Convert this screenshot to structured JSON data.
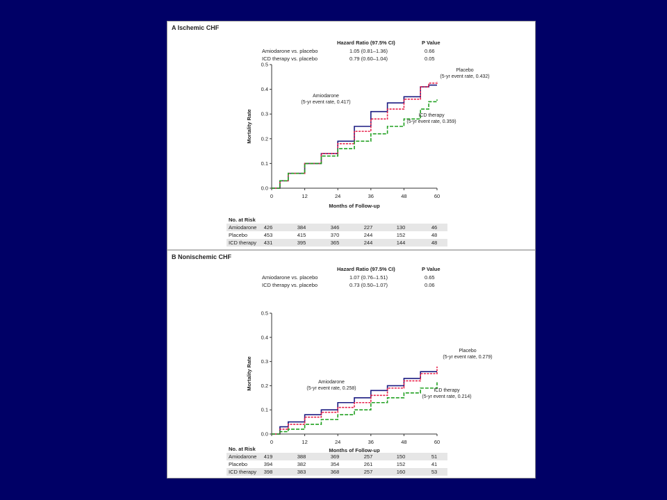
{
  "panels": [
    {
      "id": "a",
      "title": "A  Ischemic CHF",
      "hr_header": {
        "ratio": "Hazard Ratio (97.5% CI)",
        "p": "P Value"
      },
      "hr_rows": [
        {
          "label": "Amiodarone vs. placebo",
          "ratio": "1.05 (0.81–1.36)",
          "p": "0.66"
        },
        {
          "label": "ICD therapy vs. placebo",
          "ratio": "0.79 (0.60–1.04)",
          "p": "0.05"
        }
      ],
      "annotations": {
        "amiodarone": [
          "Amiodarone",
          "(5-yr event rate, 0.417)"
        ],
        "placebo": [
          "Placebo",
          "(5-yr event rate, 0.432)"
        ],
        "icd": [
          "ICD therapy",
          "(5-yr event rate, 0.359)"
        ]
      },
      "at_risk": {
        "title": "No. at Risk",
        "rows": [
          {
            "label": "Amiodarone",
            "values": [
              "426",
              "384",
              "346",
              "227",
              "130",
              "46"
            ]
          },
          {
            "label": "Placebo",
            "values": [
              "453",
              "415",
              "370",
              "244",
              "152",
              "48"
            ]
          },
          {
            "label": "ICD therapy",
            "values": [
              "431",
              "395",
              "365",
              "244",
              "144",
              "48"
            ]
          }
        ]
      }
    },
    {
      "id": "b",
      "title": "B  Nonischemic CHF",
      "hr_header": {
        "ratio": "Hazard Ratio (97.5% CI)",
        "p": "P Value"
      },
      "hr_rows": [
        {
          "label": "Amiodarone vs. placebo",
          "ratio": "1.07 (0.76–1.51)",
          "p": "0.65"
        },
        {
          "label": "ICD therapy vs. placebo",
          "ratio": "0.73 (0.50–1.07)",
          "p": "0.06"
        }
      ],
      "annotations": {
        "amiodarone": [
          "Amiodarone",
          "(5-yr event rate, 0.258)"
        ],
        "placebo": [
          "Placebo",
          "(5-yr event rate, 0.279)"
        ],
        "icd": [
          "ICD therapy",
          "(5-yr event rate, 0.214)"
        ]
      },
      "at_risk": {
        "title": "No. at Risk",
        "rows": [
          {
            "label": "Amiodarone",
            "values": [
              "419",
              "388",
              "369",
              "257",
              "150",
              "51"
            ]
          },
          {
            "label": "Placebo",
            "values": [
              "394",
              "382",
              "354",
              "261",
              "152",
              "41"
            ]
          },
          {
            "label": "ICD therapy",
            "values": [
              "398",
              "383",
              "368",
              "257",
              "160",
              "53"
            ]
          }
        ]
      }
    }
  ],
  "colors": {
    "amiodarone": "#1a1a80",
    "placebo": "#e8204a",
    "icd": "#20a020"
  },
  "chart_data": [
    {
      "type": "line",
      "xlabel": "Months of Follow-up",
      "ylabel": "Mortality Rate",
      "xlim": [
        0,
        60
      ],
      "ylim": [
        0,
        0.5
      ],
      "xticks": [
        0,
        12,
        24,
        36,
        48,
        60
      ],
      "yticks": [
        0.0,
        0.1,
        0.2,
        0.3,
        0.4,
        0.5
      ],
      "series": [
        {
          "name": "Amiodarone",
          "x": [
            0,
            3,
            6,
            12,
            18,
            24,
            30,
            36,
            42,
            48,
            54,
            57,
            60
          ],
          "y": [
            0,
            0.03,
            0.06,
            0.1,
            0.14,
            0.19,
            0.25,
            0.31,
            0.345,
            0.37,
            0.41,
            0.417,
            0.417
          ]
        },
        {
          "name": "Placebo",
          "x": [
            0,
            3,
            6,
            12,
            18,
            24,
            30,
            36,
            42,
            48,
            54,
            57,
            60
          ],
          "y": [
            0,
            0.03,
            0.06,
            0.1,
            0.14,
            0.18,
            0.23,
            0.28,
            0.32,
            0.36,
            0.41,
            0.425,
            0.432
          ]
        },
        {
          "name": "ICD therapy",
          "x": [
            0,
            3,
            6,
            12,
            18,
            24,
            30,
            36,
            42,
            48,
            54,
            57,
            60
          ],
          "y": [
            0,
            0.03,
            0.06,
            0.1,
            0.13,
            0.16,
            0.19,
            0.22,
            0.25,
            0.28,
            0.32,
            0.35,
            0.359
          ]
        }
      ]
    },
    {
      "type": "line",
      "xlabel": "Months of Follow-up",
      "ylabel": "Mortality Rate",
      "xlim": [
        0,
        60
      ],
      "ylim": [
        0,
        0.5
      ],
      "xticks": [
        0,
        12,
        24,
        36,
        48,
        60
      ],
      "yticks": [
        0.0,
        0.1,
        0.2,
        0.3,
        0.4,
        0.5
      ],
      "series": [
        {
          "name": "Amiodarone",
          "x": [
            0,
            3,
            6,
            12,
            18,
            24,
            30,
            36,
            42,
            48,
            54,
            60
          ],
          "y": [
            0,
            0.03,
            0.05,
            0.08,
            0.1,
            0.13,
            0.15,
            0.18,
            0.2,
            0.23,
            0.258,
            0.258
          ]
        },
        {
          "name": "Placebo",
          "x": [
            0,
            3,
            6,
            12,
            18,
            24,
            30,
            36,
            42,
            48,
            54,
            60
          ],
          "y": [
            0,
            0.02,
            0.04,
            0.07,
            0.09,
            0.11,
            0.13,
            0.16,
            0.19,
            0.22,
            0.25,
            0.279
          ]
        },
        {
          "name": "ICD therapy",
          "x": [
            0,
            3,
            6,
            12,
            18,
            24,
            30,
            36,
            42,
            48,
            54,
            60
          ],
          "y": [
            0,
            0.01,
            0.02,
            0.04,
            0.06,
            0.08,
            0.1,
            0.13,
            0.15,
            0.17,
            0.19,
            0.214
          ]
        }
      ]
    }
  ]
}
